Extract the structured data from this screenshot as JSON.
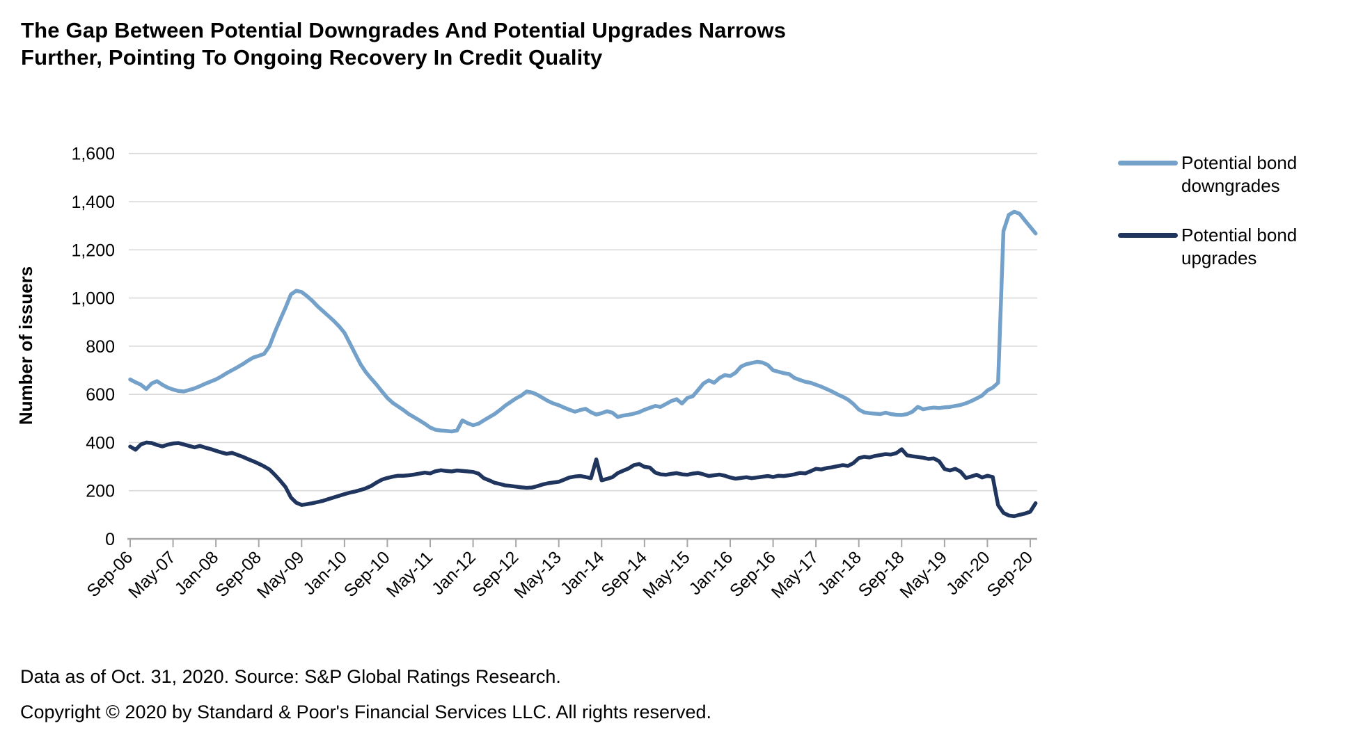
{
  "footer": {
    "line1": "Data as of Oct. 31, 2020. Source: S&P Global Ratings Research.",
    "line2": "Copyright © 2020 by Standard & Poor's Financial Services LLC. All rights reserved."
  },
  "axis_style": {
    "grid_color": "#D9D9D9",
    "axis_color": "#A6A6A6",
    "text_color": "#000000"
  },
  "chart_data": {
    "type": "line",
    "title": "The Gap Between Potential Downgrades And Potential Upgrades Narrows Further, Pointing To Ongoing Recovery In Credit Quality",
    "xlabel": "",
    "ylabel": "Number of issuers",
    "ylim": [
      0,
      1600
    ],
    "y_tick_step": 200,
    "y_tick_labels": [
      "0",
      "200",
      "400",
      "600",
      "800",
      "1,000",
      "1,200",
      "1,400",
      "1,600"
    ],
    "x_start": "Sep-06",
    "x_end": "Oct-20",
    "frequency": "monthly",
    "points_count": 170,
    "x_tick_interval_months": 8,
    "x_tick_labels": [
      "Sep-06",
      "May-07",
      "Jan-08",
      "Sep-08",
      "May-09",
      "Jan-10",
      "Sep-10",
      "May-11",
      "Jan-12",
      "Sep-12",
      "May-13",
      "Jan-14",
      "Sep-14",
      "May-15",
      "Jan-16",
      "Sep-16",
      "May-17",
      "Jan-18",
      "Sep-18",
      "May-19",
      "Jan-20",
      "Sep-20"
    ],
    "grid": "horizontal",
    "legend_position": "right",
    "series": [
      {
        "name": "Potential bond downgrades",
        "color": "#74A1C9",
        "values": [
          662,
          650,
          640,
          622,
          645,
          655,
          640,
          628,
          620,
          614,
          612,
          618,
          625,
          634,
          644,
          653,
          662,
          674,
          688,
          700,
          712,
          725,
          740,
          753,
          760,
          768,
          800,
          858,
          910,
          960,
          1015,
          1030,
          1025,
          1008,
          988,
          965,
          945,
          925,
          905,
          882,
          855,
          812,
          768,
          725,
          692,
          665,
          640,
          612,
          585,
          565,
          550,
          535,
          518,
          505,
          492,
          478,
          462,
          453,
          450,
          448,
          446,
          450,
          492,
          480,
          472,
          478,
          492,
          505,
          518,
          535,
          553,
          568,
          583,
          595,
          612,
          608,
          598,
          585,
          572,
          562,
          555,
          545,
          536,
          528,
          535,
          540,
          526,
          516,
          522,
          530,
          524,
          506,
          512,
          515,
          520,
          526,
          536,
          544,
          552,
          548,
          560,
          572,
          580,
          562,
          585,
          592,
          618,
          645,
          658,
          648,
          668,
          680,
          676,
          690,
          715,
          725,
          730,
          735,
          732,
          722,
          700,
          694,
          688,
          684,
          668,
          660,
          652,
          648,
          640,
          632,
          622,
          612,
          600,
          590,
          578,
          560,
          537,
          525,
          522,
          520,
          518,
          524,
          518,
          515,
          514,
          518,
          528,
          548,
          538,
          542,
          545,
          543,
          546,
          548,
          552,
          556,
          563,
          572,
          583,
          595,
          616,
          628,
          648,
          1278,
          1345,
          1358,
          1350,
          1322,
          1295,
          1268
        ]
      },
      {
        "name": "Potential bond upgrades",
        "color": "#1F355E",
        "values": [
          383,
          370,
          392,
          400,
          398,
          390,
          384,
          391,
          396,
          398,
          392,
          386,
          380,
          386,
          379,
          373,
          366,
          359,
          353,
          357,
          349,
          341,
          331,
          322,
          312,
          301,
          288,
          266,
          242,
          215,
          172,
          150,
          141,
          144,
          148,
          153,
          158,
          165,
          172,
          179,
          186,
          192,
          197,
          203,
          210,
          220,
          234,
          246,
          253,
          258,
          262,
          262,
          264,
          267,
          271,
          275,
          272,
          281,
          285,
          282,
          280,
          284,
          282,
          280,
          278,
          271,
          252,
          243,
          233,
          228,
          222,
          220,
          217,
          214,
          212,
          213,
          219,
          226,
          231,
          234,
          237,
          246,
          255,
          259,
          261,
          257,
          252,
          330,
          243,
          249,
          256,
          273,
          283,
          292,
          306,
          311,
          299,
          296,
          275,
          268,
          266,
          270,
          273,
          268,
          266,
          271,
          274,
          268,
          261,
          264,
          267,
          262,
          255,
          250,
          253,
          256,
          252,
          255,
          258,
          261,
          257,
          262,
          261,
          264,
          268,
          274,
          272,
          281,
          291,
          288,
          294,
          297,
          302,
          306,
          303,
          315,
          335,
          341,
          338,
          344,
          348,
          352,
          350,
          356,
          372,
          347,
          343,
          340,
          337,
          332,
          334,
          322,
          290,
          284,
          291,
          279,
          253,
          259,
          266,
          255,
          262,
          257,
          140,
          108,
          97,
          94,
          100,
          105,
          113,
          148
        ]
      }
    ]
  }
}
